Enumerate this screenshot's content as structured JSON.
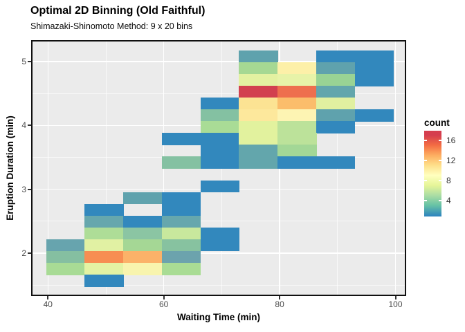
{
  "header": {
    "title": "Optimal 2D Binning (Old Faithful)",
    "subtitle": "Shimazaki-Shinomoto Method: 9 x 20 bins"
  },
  "axes": {
    "x": {
      "title": "Waiting Time (min)",
      "tick_values": [
        40,
        60,
        80,
        100
      ],
      "tick_labels": [
        "40",
        "60",
        "80",
        "100"
      ],
      "minor_values": [
        50,
        70,
        90
      ],
      "range": [
        37.1,
        103.3
      ]
    },
    "y": {
      "title": "Eruption Duration (min)",
      "tick_values": [
        5,
        4,
        3,
        2
      ],
      "tick_labels": [
        "5",
        "4",
        "3",
        "2"
      ],
      "minor_values": [
        4.5,
        3.5,
        2.5,
        1.5
      ],
      "range": [
        1.33,
        5.34
      ]
    }
  },
  "legend": {
    "title": "count",
    "tick_values": [
      16,
      12,
      8,
      4
    ],
    "tick_labels": [
      "16",
      "12",
      "8",
      "4"
    ],
    "domain": [
      0.8,
      17.9
    ],
    "color_values": [
      17,
      15,
      13,
      11,
      9,
      7,
      5,
      3,
      1
    ],
    "colors_high_to_low": [
      "#D53E4F",
      "#F46D43",
      "#FDAE61",
      "#FEE08B",
      "#FFFFBF",
      "#E6F598",
      "#ABDDA4",
      "#66C2A5",
      "#3288BD"
    ]
  },
  "panel": {
    "bg": "#EBEBEB",
    "grid": "#FFFFFF",
    "border": "#101010"
  },
  "chart_data": {
    "type": "heatmap",
    "title": "Optimal 2D Binning (Old Faithful)",
    "subtitle": "Shimazaki-Shinomoto Method: 9 x 20 bins",
    "xlabel": "Waiting Time (min)",
    "ylabel": "Eruption Duration (min)",
    "grid": true,
    "legend_position": "right",
    "x_bins": {
      "n": 9,
      "start": 39.7,
      "width": 6.67,
      "unit": "min"
    },
    "y_bins": {
      "n": 20,
      "start": 1.48,
      "width": 0.185,
      "unit": "min"
    },
    "x_axis_range": [
      37.1,
      103.3
    ],
    "y_axis_range": [
      1.33,
      5.34
    ],
    "color_scale": {
      "name": "Spectral reversed",
      "low": "#3288BD",
      "high": "#D53E4F",
      "legend_ticks": [
        4,
        8,
        12,
        16
      ]
    },
    "tiles": [
      {
        "col": 5,
        "row": 19,
        "count": 3,
        "color": "#5FA2AD"
      },
      {
        "col": 7,
        "row": 19,
        "count": 1,
        "color": "#3288BD"
      },
      {
        "col": 8,
        "row": 19,
        "count": 1,
        "color": "#3288BD"
      },
      {
        "col": 5,
        "row": 18,
        "count": 5,
        "color": "#A6D893"
      },
      {
        "col": 6,
        "row": 18,
        "count": 9,
        "color": "#FDF0A8"
      },
      {
        "col": 7,
        "row": 18,
        "count": 3,
        "color": "#5FA2AD"
      },
      {
        "col": 8,
        "row": 18,
        "count": 1,
        "color": "#3288BD"
      },
      {
        "col": 5,
        "row": 17,
        "count": 8,
        "color": "#E3F1A1"
      },
      {
        "col": 6,
        "row": 17,
        "count": 8,
        "color": "#E7F3A8"
      },
      {
        "col": 7,
        "row": 17,
        "count": 5,
        "color": "#99D394"
      },
      {
        "col": 8,
        "row": 17,
        "count": 1,
        "color": "#3288BD"
      },
      {
        "col": 5,
        "row": 16,
        "count": 17,
        "color": "#D2404F"
      },
      {
        "col": 6,
        "row": 16,
        "count": 15,
        "color": "#EE6F4E"
      },
      {
        "col": 7,
        "row": 16,
        "count": 3,
        "color": "#63A6AC"
      },
      {
        "col": 4,
        "row": 15,
        "count": 1,
        "color": "#3288BD"
      },
      {
        "col": 5,
        "row": 15,
        "count": 11,
        "color": "#FCE393"
      },
      {
        "col": 6,
        "row": 15,
        "count": 12,
        "color": "#FBBD6B"
      },
      {
        "col": 7,
        "row": 15,
        "count": 8,
        "color": "#E1F0A0"
      },
      {
        "col": 4,
        "row": 14,
        "count": 4,
        "color": "#84C1A2"
      },
      {
        "col": 5,
        "row": 14,
        "count": 11,
        "color": "#FDE89C"
      },
      {
        "col": 6,
        "row": 14,
        "count": 9,
        "color": "#FDF4B3"
      },
      {
        "col": 7,
        "row": 14,
        "count": 3,
        "color": "#5FA2AD"
      },
      {
        "col": 8,
        "row": 14,
        "count": 1,
        "color": "#3288BD"
      },
      {
        "col": 4,
        "row": 13,
        "count": 6,
        "color": "#A9DC96"
      },
      {
        "col": 5,
        "row": 13,
        "count": 8,
        "color": "#E2F29E"
      },
      {
        "col": 6,
        "row": 13,
        "count": 6,
        "color": "#BCE29A"
      },
      {
        "col": 7,
        "row": 13,
        "count": 1,
        "color": "#3288BD"
      },
      {
        "col": 3,
        "row": 12,
        "count": 1,
        "color": "#3288BD"
      },
      {
        "col": 4,
        "row": 12,
        "count": 1,
        "color": "#3288BD"
      },
      {
        "col": 5,
        "row": 12,
        "count": 8,
        "color": "#E2F29E"
      },
      {
        "col": 6,
        "row": 12,
        "count": 6,
        "color": "#BCE29A"
      },
      {
        "col": 4,
        "row": 11,
        "count": 1,
        "color": "#3288BD"
      },
      {
        "col": 5,
        "row": 11,
        "count": 3,
        "color": "#63A6AC"
      },
      {
        "col": 6,
        "row": 11,
        "count": 5,
        "color": "#A3D796"
      },
      {
        "col": 3,
        "row": 10,
        "count": 4,
        "color": "#84C1A2"
      },
      {
        "col": 4,
        "row": 10,
        "count": 1,
        "color": "#3288BD"
      },
      {
        "col": 5,
        "row": 10,
        "count": 3,
        "color": "#63A6AC"
      },
      {
        "col": 6,
        "row": 10,
        "count": 1,
        "color": "#3288BD"
      },
      {
        "col": 7,
        "row": 10,
        "count": 1,
        "color": "#3288BD"
      },
      {
        "col": 4,
        "row": 8,
        "count": 1,
        "color": "#3288BD"
      },
      {
        "col": 2,
        "row": 7,
        "count": 3,
        "color": "#5FA2AD"
      },
      {
        "col": 3,
        "row": 7,
        "count": 1,
        "color": "#3288BD"
      },
      {
        "col": 1,
        "row": 6,
        "count": 1,
        "color": "#3288BD"
      },
      {
        "col": 3,
        "row": 6,
        "count": 1,
        "color": "#3288BD"
      },
      {
        "col": 1,
        "row": 5,
        "count": 3,
        "color": "#66A7AD"
      },
      {
        "col": 2,
        "row": 5,
        "count": 1,
        "color": "#3288BD"
      },
      {
        "col": 3,
        "row": 5,
        "count": 3,
        "color": "#66A7AD"
      },
      {
        "col": 1,
        "row": 4,
        "count": 6,
        "color": "#AEDD97"
      },
      {
        "col": 2,
        "row": 4,
        "count": 4,
        "color": "#8BC5A3"
      },
      {
        "col": 3,
        "row": 4,
        "count": 7,
        "color": "#C8E89D"
      },
      {
        "col": 4,
        "row": 4,
        "count": 1,
        "color": "#3288BD"
      },
      {
        "col": 0,
        "row": 3,
        "count": 3,
        "color": "#67A4AE"
      },
      {
        "col": 1,
        "row": 3,
        "count": 8,
        "color": "#E1F1A3"
      },
      {
        "col": 2,
        "row": 3,
        "count": 5,
        "color": "#A5D795"
      },
      {
        "col": 3,
        "row": 3,
        "count": 4,
        "color": "#87C2A0"
      },
      {
        "col": 4,
        "row": 3,
        "count": 1,
        "color": "#3288BD"
      },
      {
        "col": 0,
        "row": 2,
        "count": 4,
        "color": "#85BFA1"
      },
      {
        "col": 1,
        "row": 2,
        "count": 14,
        "color": "#F78E52"
      },
      {
        "col": 2,
        "row": 2,
        "count": 12,
        "color": "#FBB269"
      },
      {
        "col": 3,
        "row": 2,
        "count": 3,
        "color": "#6CA3AD"
      },
      {
        "col": 0,
        "row": 1,
        "count": 6,
        "color": "#A8DB95"
      },
      {
        "col": 1,
        "row": 1,
        "count": 8,
        "color": "#E4F3A3"
      },
      {
        "col": 2,
        "row": 1,
        "count": 9,
        "color": "#F8F4AE"
      },
      {
        "col": 3,
        "row": 1,
        "count": 6,
        "color": "#A9DC94"
      },
      {
        "col": 1,
        "row": 0,
        "count": 1,
        "color": "#3288BD"
      }
    ]
  }
}
